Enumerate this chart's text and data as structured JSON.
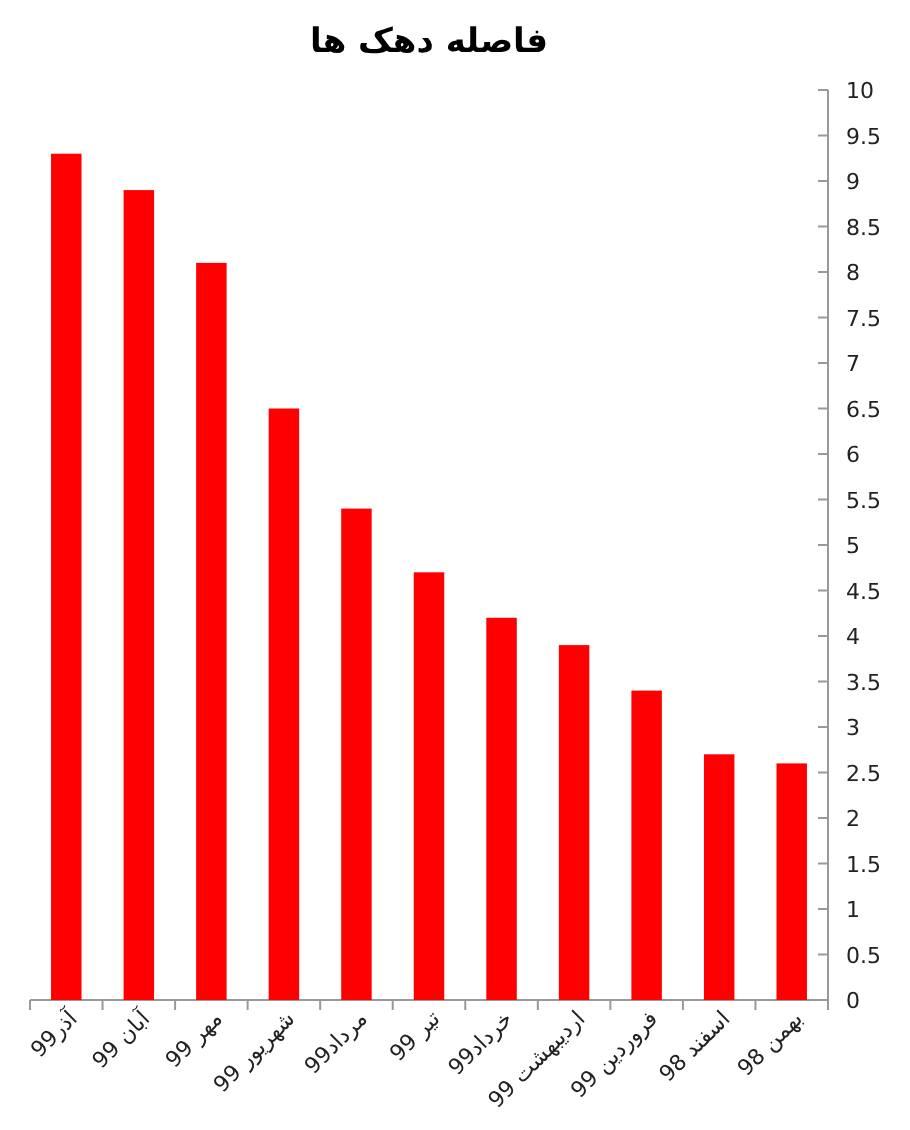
{
  "chart_data": {
    "type": "bar",
    "title": "فاصله دهک ها",
    "categories": [
      "آذر99",
      "آبان 99",
      "مهر 99",
      "شهریور 99",
      "مرداد99",
      "تیر 99",
      "خرداد99",
      "اردیبهشت 99",
      "فروردین 99",
      "اسفند 98",
      "بهمن 98"
    ],
    "values": [
      9.3,
      8.9,
      8.1,
      6.5,
      5.4,
      4.7,
      4.2,
      3.9,
      3.4,
      2.7,
      2.6
    ],
    "color": "#ff0000",
    "ylim": [
      0,
      10
    ],
    "yticks": [
      0,
      0.5,
      1,
      1.5,
      2,
      2.5,
      3,
      3.5,
      4,
      4.5,
      5,
      5.5,
      6,
      6.5,
      7,
      7.5,
      8,
      8.5,
      9,
      9.5,
      10
    ],
    "grid": false
  }
}
